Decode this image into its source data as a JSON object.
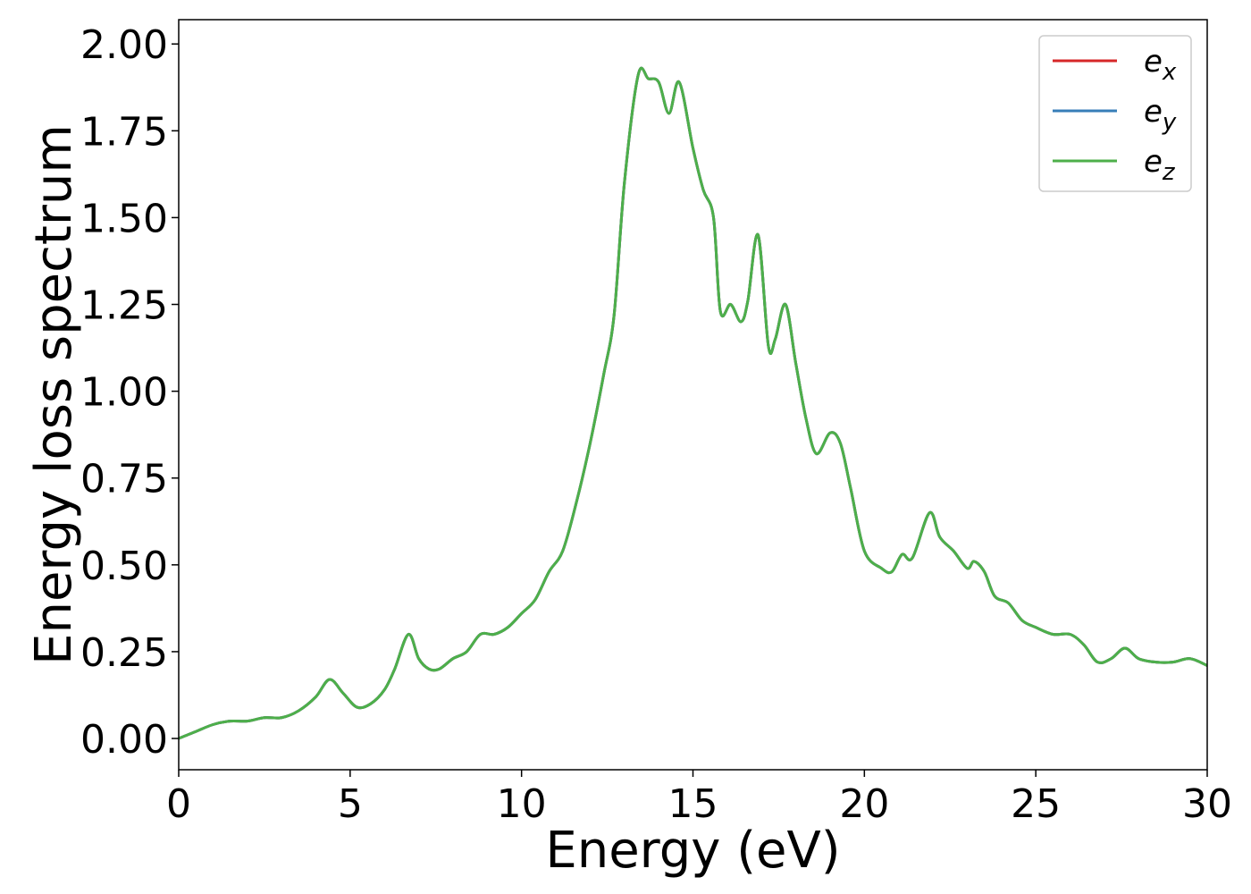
{
  "chart_data": {
    "type": "line",
    "xlabel": "Energy (eV)",
    "ylabel": "Energy loss spectrum",
    "xlim": [
      0,
      30
    ],
    "ylim": [
      -0.09,
      2.07
    ],
    "xticks": [
      0,
      5,
      10,
      15,
      20,
      25,
      30
    ],
    "xtick_labels": [
      "0",
      "5",
      "10",
      "15",
      "20",
      "25",
      "30"
    ],
    "yticks": [
      0.0,
      0.25,
      0.5,
      0.75,
      1.0,
      1.25,
      1.5,
      1.75,
      2.0
    ],
    "ytick_labels": [
      "0.00",
      "0.25",
      "0.50",
      "0.75",
      "1.00",
      "1.25",
      "1.50",
      "1.75",
      "2.00"
    ],
    "grid": false,
    "legend": {
      "position": "top-right"
    },
    "x": [
      0,
      0.5,
      1.0,
      1.5,
      2.0,
      2.5,
      3.0,
      3.5,
      4.0,
      4.4,
      4.8,
      5.2,
      5.6,
      6.0,
      6.3,
      6.7,
      7.0,
      7.3,
      7.6,
      8.0,
      8.4,
      8.8,
      9.2,
      9.6,
      10.0,
      10.4,
      10.8,
      11.2,
      11.6,
      12.0,
      12.4,
      12.7,
      13.0,
      13.4,
      13.7,
      14.0,
      14.3,
      14.6,
      15.0,
      15.3,
      15.6,
      15.8,
      16.1,
      16.4,
      16.6,
      16.9,
      17.2,
      17.4,
      17.7,
      18.0,
      18.3,
      18.6,
      19.0,
      19.3,
      19.6,
      20.0,
      20.5,
      20.8,
      21.1,
      21.4,
      21.9,
      22.2,
      22.6,
      23.0,
      23.2,
      23.5,
      23.8,
      24.2,
      24.6,
      25.0,
      25.5,
      26.0,
      26.4,
      26.8,
      27.2,
      27.6,
      28.0,
      28.5,
      29.0,
      29.5,
      30.0
    ],
    "series": [
      {
        "name": "e_x",
        "label_base": "e",
        "label_sub": "x",
        "color": "#d62728",
        "values": [
          0.0,
          0.02,
          0.04,
          0.05,
          0.05,
          0.06,
          0.06,
          0.08,
          0.12,
          0.17,
          0.13,
          0.09,
          0.1,
          0.14,
          0.2,
          0.3,
          0.23,
          0.2,
          0.2,
          0.23,
          0.25,
          0.3,
          0.3,
          0.32,
          0.36,
          0.4,
          0.48,
          0.54,
          0.68,
          0.85,
          1.05,
          1.22,
          1.6,
          1.91,
          1.9,
          1.89,
          1.8,
          1.89,
          1.7,
          1.58,
          1.5,
          1.23,
          1.25,
          1.2,
          1.26,
          1.45,
          1.13,
          1.15,
          1.25,
          1.08,
          0.92,
          0.82,
          0.88,
          0.85,
          0.72,
          0.54,
          0.49,
          0.48,
          0.53,
          0.52,
          0.65,
          0.58,
          0.54,
          0.49,
          0.51,
          0.48,
          0.41,
          0.39,
          0.34,
          0.32,
          0.3,
          0.3,
          0.27,
          0.22,
          0.23,
          0.26,
          0.23,
          0.22,
          0.22,
          0.23,
          0.21
        ]
      },
      {
        "name": "e_y",
        "label_base": "e",
        "label_sub": "y",
        "color": "#377eb8",
        "values": [
          0.0,
          0.02,
          0.04,
          0.05,
          0.05,
          0.06,
          0.06,
          0.08,
          0.12,
          0.17,
          0.13,
          0.09,
          0.1,
          0.14,
          0.2,
          0.3,
          0.23,
          0.2,
          0.2,
          0.23,
          0.25,
          0.3,
          0.3,
          0.32,
          0.36,
          0.4,
          0.48,
          0.54,
          0.68,
          0.85,
          1.05,
          1.22,
          1.6,
          1.91,
          1.9,
          1.89,
          1.8,
          1.89,
          1.7,
          1.58,
          1.5,
          1.23,
          1.25,
          1.2,
          1.26,
          1.45,
          1.13,
          1.15,
          1.25,
          1.08,
          0.92,
          0.82,
          0.88,
          0.85,
          0.72,
          0.54,
          0.49,
          0.48,
          0.53,
          0.52,
          0.65,
          0.58,
          0.54,
          0.49,
          0.51,
          0.48,
          0.41,
          0.39,
          0.34,
          0.32,
          0.3,
          0.3,
          0.27,
          0.22,
          0.23,
          0.26,
          0.23,
          0.22,
          0.22,
          0.23,
          0.21
        ]
      },
      {
        "name": "e_z",
        "label_base": "e",
        "label_sub": "z",
        "color": "#4daf4a",
        "values": [
          0.0,
          0.02,
          0.04,
          0.05,
          0.05,
          0.06,
          0.06,
          0.08,
          0.12,
          0.17,
          0.13,
          0.09,
          0.1,
          0.14,
          0.2,
          0.3,
          0.23,
          0.2,
          0.2,
          0.23,
          0.25,
          0.3,
          0.3,
          0.32,
          0.36,
          0.4,
          0.48,
          0.54,
          0.68,
          0.85,
          1.05,
          1.22,
          1.6,
          1.91,
          1.9,
          1.89,
          1.8,
          1.89,
          1.7,
          1.58,
          1.5,
          1.23,
          1.25,
          1.2,
          1.26,
          1.45,
          1.13,
          1.15,
          1.25,
          1.08,
          0.92,
          0.82,
          0.88,
          0.85,
          0.72,
          0.54,
          0.49,
          0.48,
          0.53,
          0.52,
          0.65,
          0.58,
          0.54,
          0.49,
          0.51,
          0.48,
          0.41,
          0.39,
          0.34,
          0.32,
          0.3,
          0.3,
          0.27,
          0.22,
          0.23,
          0.26,
          0.23,
          0.22,
          0.22,
          0.23,
          0.21
        ]
      }
    ]
  }
}
